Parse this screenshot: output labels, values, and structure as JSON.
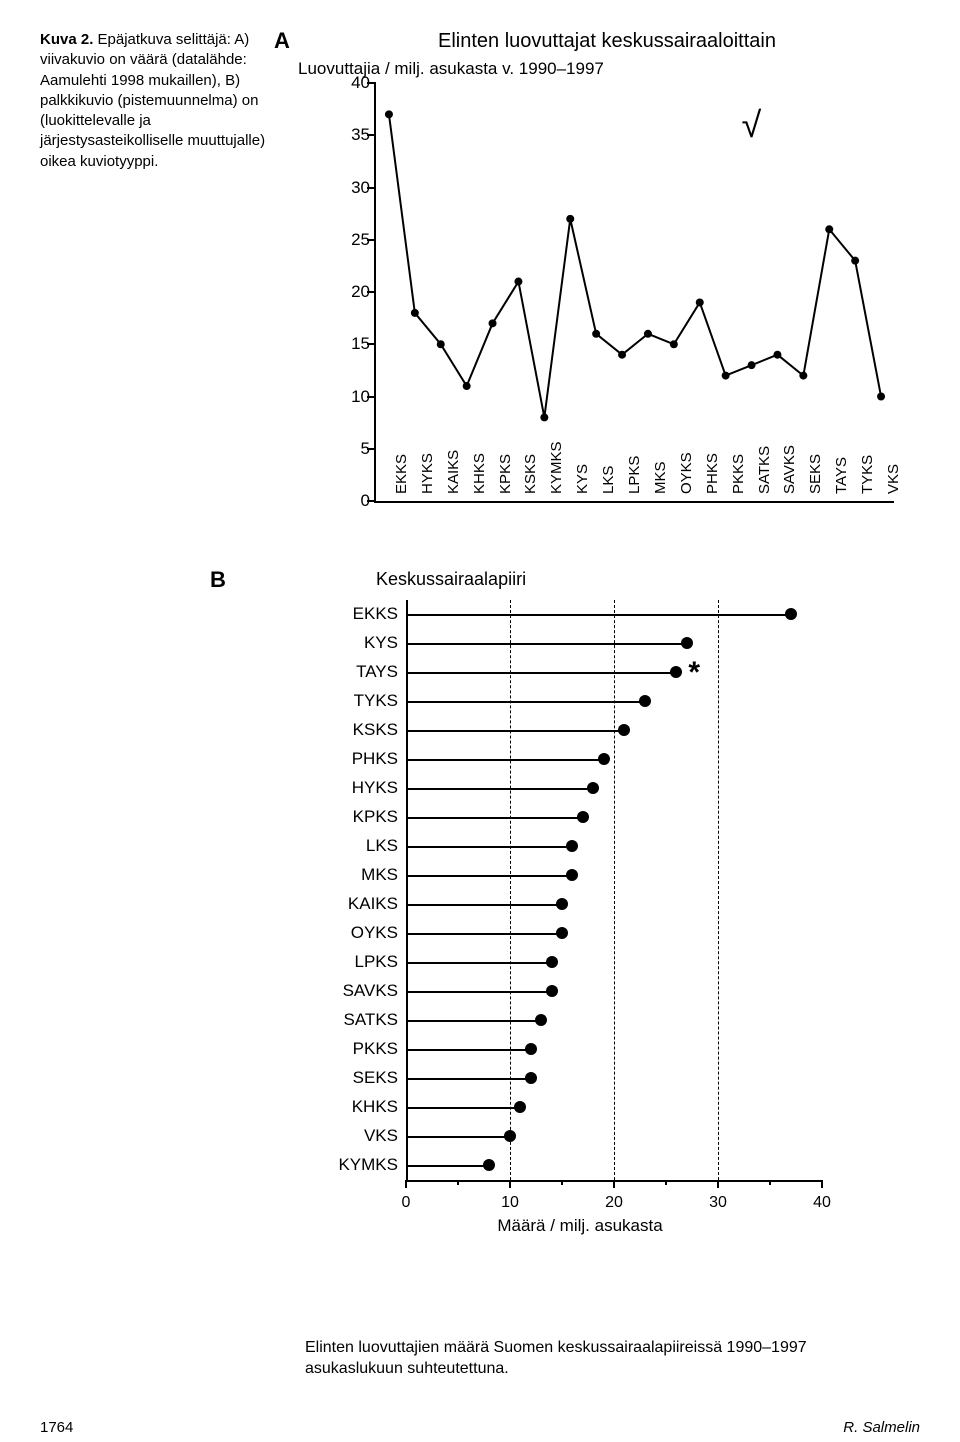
{
  "caption": {
    "title": "Kuva 2.",
    "text": " Epäjatkuva selittäjä: A) viivakuvio on väärä (data­lähde: Aamulehti 1998 mukaillen), B) palkkikuvio (piste­muunnelma) on (luokittelevalle ja järjestysasteikolliselle muuttujalle) oikea kuviotyyppi."
  },
  "panelA": {
    "label": "A",
    "title": "Elinten luovuttajat keskussairaaloittain",
    "subtitle": "Luovuttajia / milj. asukasta v. 1990–1997",
    "type": "line",
    "ylim": [
      0,
      40
    ],
    "ytick_step": 5,
    "yticks": [
      0,
      5,
      10,
      15,
      20,
      25,
      30,
      35,
      40
    ],
    "line_color": "#000000",
    "marker_style": "circle",
    "marker_size": 8,
    "line_width": 2,
    "background_color": "#ffffff",
    "categories": [
      "EKKS",
      "HYKS",
      "KAIKS",
      "KHKS",
      "KPKS",
      "KSKS",
      "KYMKS",
      "KYS",
      "LKS",
      "LPKS",
      "MKS",
      "OYKS",
      "PHKS",
      "PKKS",
      "SATKS",
      "SAVKS",
      "SEKS",
      "TAYS",
      "TYKS",
      "VKS"
    ],
    "values": [
      37,
      18,
      15,
      11,
      17,
      21,
      8,
      27,
      16,
      14,
      16,
      15,
      19,
      12,
      13,
      14,
      12,
      26,
      23,
      10
    ],
    "checkmark_glyph": "√",
    "x_label_fontsize": 15,
    "tick_label_fontsize": 17
  },
  "panelB": {
    "label": "B",
    "title": "Keskussairaalapiiri",
    "type": "lollipop",
    "xlim": [
      0,
      40
    ],
    "xtick_step": 10,
    "xticks": [
      0,
      10,
      20,
      30,
      40
    ],
    "xminor_ticks": [
      5,
      15,
      25,
      35
    ],
    "grid_lines": [
      10,
      20,
      30
    ],
    "grid_style": "dashed",
    "dot_color": "#000000",
    "line_color": "#000000",
    "dot_size": 12,
    "x_title": "Määrä / milj. asukasta",
    "label_fontsize": 17,
    "items": [
      {
        "label": "EKKS",
        "value": 37,
        "star": false
      },
      {
        "label": "KYS",
        "value": 27,
        "star": false
      },
      {
        "label": "TAYS",
        "value": 26,
        "star": true
      },
      {
        "label": "TYKS",
        "value": 23,
        "star": false
      },
      {
        "label": "KSKS",
        "value": 21,
        "star": false
      },
      {
        "label": "PHKS",
        "value": 19,
        "star": false
      },
      {
        "label": "HYKS",
        "value": 18,
        "star": false
      },
      {
        "label": "KPKS",
        "value": 17,
        "star": false
      },
      {
        "label": "LKS",
        "value": 16,
        "star": false
      },
      {
        "label": "MKS",
        "value": 16,
        "star": false
      },
      {
        "label": "KAIKS",
        "value": 15,
        "star": false
      },
      {
        "label": "OYKS",
        "value": 15,
        "star": false
      },
      {
        "label": "LPKS",
        "value": 14,
        "star": false
      },
      {
        "label": "SAVKS",
        "value": 14,
        "star": false
      },
      {
        "label": "SATKS",
        "value": 13,
        "star": false
      },
      {
        "label": "PKKS",
        "value": 12,
        "star": false
      },
      {
        "label": "SEKS",
        "value": 12,
        "star": false
      },
      {
        "label": "KHKS",
        "value": 11,
        "star": false
      },
      {
        "label": "VKS",
        "value": 10,
        "star": false
      },
      {
        "label": "KYMKS",
        "value": 8,
        "star": false
      }
    ],
    "star_glyph": "*"
  },
  "bottom_caption": "Elinten luovuttajien määrä Suomen keskussairaalapiireissä 1990–1997 asukaslukuun suhteutettuna.",
  "footer": {
    "page": "1764",
    "author": "R. Salmelin"
  }
}
